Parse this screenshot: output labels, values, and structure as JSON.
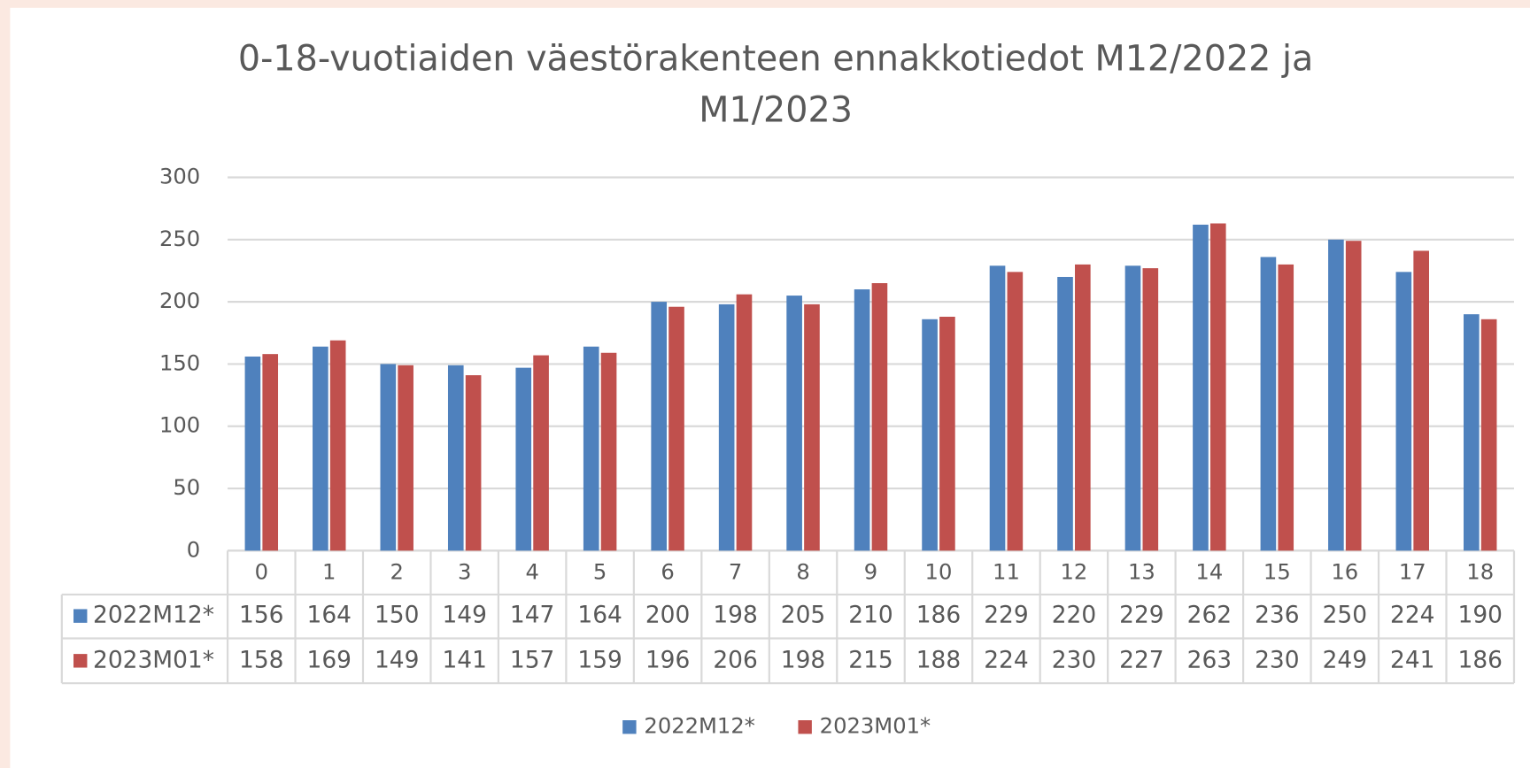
{
  "chart_data": {
    "type": "bar",
    "title": "0-18-vuotiaiden väestörakenteen ennakkotiedot M12/2022 ja M1/2023",
    "categories": [
      "0",
      "1",
      "2",
      "3",
      "4",
      "5",
      "6",
      "7",
      "8",
      "9",
      "10",
      "11",
      "12",
      "13",
      "14",
      "15",
      "16",
      "17",
      "18"
    ],
    "series": [
      {
        "name": "2022M12*",
        "color": "#4f81bd",
        "values": [
          156,
          164,
          150,
          149,
          147,
          164,
          200,
          198,
          205,
          210,
          186,
          229,
          220,
          229,
          262,
          236,
          250,
          224,
          190
        ]
      },
      {
        "name": "2023M01*",
        "color": "#c0504d",
        "values": [
          158,
          169,
          149,
          141,
          157,
          159,
          196,
          206,
          198,
          215,
          188,
          224,
          230,
          227,
          263,
          230,
          249,
          241,
          186
        ]
      }
    ],
    "ylim": [
      0,
      300
    ],
    "yticks": [
      0,
      50,
      100,
      150,
      200,
      250,
      300
    ],
    "grid": true,
    "legend": "bottom",
    "data_table": true
  }
}
